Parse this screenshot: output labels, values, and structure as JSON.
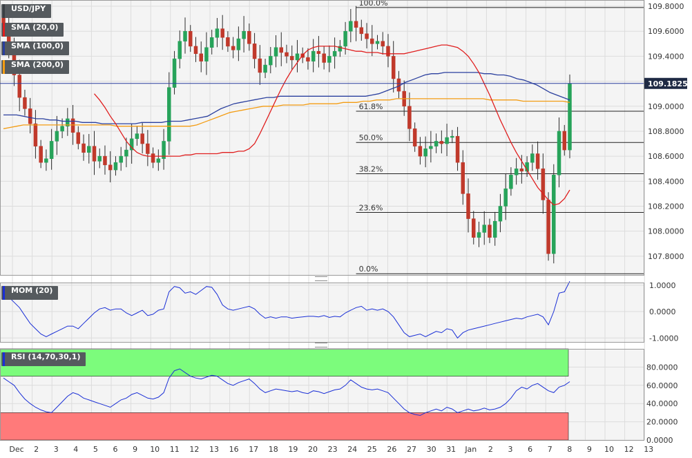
{
  "symbol": "USD/JPY",
  "indicators": {
    "sma20": "SMA (20,0)",
    "sma100": "SMA (100,0)",
    "sma200": "SMA (200,0)",
    "mom": "MOM (20)",
    "rsi": "RSI (14,70,30,1)"
  },
  "colors": {
    "sma20": "#e01e1e",
    "sma100": "#2a3f9e",
    "sma200": "#f39c12",
    "mom": "#1a2fd6",
    "rsi": "#1a2fd6",
    "candle_up": "#27a35a",
    "candle_down": "#c0392b",
    "overbought_zone": "#7cfc7c",
    "oversold_zone": "#ff7a7a"
  },
  "chart_data": [
    {
      "type": "candlestick",
      "panel": "price",
      "ylim": [
        107.65,
        109.85
      ],
      "y_ticks": [
        "109.8000",
        "109.6000",
        "109.4000",
        "109.2000",
        "109.0000",
        "108.8000",
        "108.6000",
        "108.4000",
        "108.2000",
        "108.0000",
        "107.8000"
      ],
      "last_price": "109.1825",
      "fibonacci": [
        {
          "label": "100.0%",
          "value": 109.79
        },
        {
          "label": "61.8%",
          "value": 108.96
        },
        {
          "label": "50.0%",
          "value": 108.71
        },
        {
          "label": "38.2%",
          "value": 108.46
        },
        {
          "label": "23.6%",
          "value": 108.15
        },
        {
          "label": "0.0%",
          "value": 107.66
        }
      ],
      "close_series": [
        109.66,
        109.45,
        109.25,
        109.07,
        108.98,
        108.86,
        108.68,
        108.55,
        108.58,
        108.72,
        108.8,
        108.84,
        108.9,
        108.79,
        108.7,
        108.63,
        108.68,
        108.56,
        108.6,
        108.53,
        108.49,
        108.55,
        108.6,
        108.65,
        108.74,
        108.78,
        108.7,
        108.62,
        108.55,
        108.58,
        108.72,
        109.15,
        109.38,
        109.52,
        109.6,
        109.48,
        109.42,
        109.36,
        109.47,
        109.55,
        109.62,
        109.55,
        109.48,
        109.45,
        109.54,
        109.6,
        109.5,
        109.38,
        109.27,
        109.33,
        109.4,
        109.47,
        109.43,
        109.4,
        109.37,
        109.42,
        109.39,
        109.36,
        109.44,
        109.42,
        109.35,
        109.4,
        109.44,
        109.48,
        109.6,
        109.68,
        109.63,
        109.58,
        109.54,
        109.5,
        109.52,
        109.48,
        109.4,
        109.22,
        109.12,
        109.0,
        108.82,
        108.68,
        108.6,
        108.66,
        108.68,
        108.72,
        108.7,
        108.75,
        108.76,
        108.55,
        108.3,
        108.1,
        107.95,
        107.99,
        108.05,
        107.95,
        108.08,
        108.2,
        108.34,
        108.45,
        108.5,
        108.48,
        108.55,
        108.62,
        108.5,
        108.25,
        107.82,
        108.45,
        108.8,
        108.65,
        109.18
      ],
      "sma20_series": [
        109.1,
        109.05,
        108.99,
        108.92,
        108.86,
        108.79,
        108.72,
        108.67,
        108.63,
        108.61,
        108.6,
        108.6,
        108.6,
        108.6,
        108.6,
        108.6,
        108.6,
        108.61,
        108.61,
        108.62,
        108.62,
        108.62,
        108.62,
        108.62,
        108.63,
        108.63,
        108.63,
        108.64,
        108.64,
        108.66,
        108.7,
        108.78,
        108.87,
        108.96,
        109.05,
        109.14,
        109.22,
        109.29,
        109.35,
        109.41,
        109.45,
        109.47,
        109.48,
        109.48,
        109.48,
        109.48,
        109.47,
        109.46,
        109.45,
        109.44,
        109.44,
        109.43,
        109.43,
        109.43,
        109.42,
        109.42,
        109.42,
        109.42,
        109.42,
        109.43,
        109.44,
        109.45,
        109.46,
        109.47,
        109.48,
        109.49,
        109.49,
        109.48,
        109.47,
        109.44,
        109.4,
        109.34,
        109.27,
        109.18,
        109.09,
        108.99,
        108.89,
        108.8,
        108.71,
        108.63,
        108.56,
        108.49,
        108.42,
        108.35,
        108.3,
        108.25,
        108.21,
        108.22,
        108.26,
        108.33
      ],
      "sma20_start_index": 17,
      "sma100_series": [
        108.93,
        108.93,
        108.93,
        108.92,
        108.91,
        108.9,
        108.9,
        108.89,
        108.89,
        108.88,
        108.88,
        108.88,
        108.87,
        108.87,
        108.87,
        108.86,
        108.86,
        108.86,
        108.86,
        108.86,
        108.86,
        108.87,
        108.87,
        108.87,
        108.87,
        108.88,
        108.88,
        108.88,
        108.89,
        108.9,
        108.91,
        108.92,
        108.95,
        108.98,
        109.0,
        109.02,
        109.03,
        109.04,
        109.05,
        109.06,
        109.07,
        109.07,
        109.08,
        109.08,
        109.08,
        109.08,
        109.08,
        109.08,
        109.08,
        109.08,
        109.08,
        109.08,
        109.08,
        109.08,
        109.08,
        109.08,
        109.09,
        109.1,
        109.12,
        109.14,
        109.16,
        109.19,
        109.21,
        109.23,
        109.25,
        109.26,
        109.26,
        109.27,
        109.27,
        109.27,
        109.27,
        109.27,
        109.27,
        109.26,
        109.26,
        109.25,
        109.25,
        109.24,
        109.22,
        109.21,
        109.19,
        109.17,
        109.14,
        109.11,
        109.09,
        109.07,
        109.05
      ],
      "sma200_series": [
        108.82,
        108.83,
        108.84,
        108.85,
        108.85,
        108.85,
        108.85,
        108.85,
        108.85,
        108.85,
        108.85,
        108.85,
        108.85,
        108.85,
        108.85,
        108.85,
        108.85,
        108.84,
        108.84,
        108.84,
        108.84,
        108.84,
        108.84,
        108.84,
        108.84,
        108.84,
        108.84,
        108.84,
        108.84,
        108.85,
        108.87,
        108.89,
        108.91,
        108.93,
        108.95,
        108.96,
        108.97,
        108.98,
        108.99,
        109.0,
        109.0,
        109.0,
        109.01,
        109.01,
        109.01,
        109.01,
        109.02,
        109.02,
        109.02,
        109.02,
        109.02,
        109.03,
        109.03,
        109.03,
        109.04,
        109.04,
        109.05,
        109.05,
        109.05,
        109.06,
        109.06,
        109.06,
        109.06,
        109.06,
        109.06,
        109.06,
        109.06,
        109.06,
        109.06,
        109.06,
        109.06,
        109.06,
        109.06,
        109.05,
        109.05,
        109.05,
        109.05,
        109.05,
        109.04,
        109.04,
        109.04,
        109.04,
        109.04,
        109.04,
        109.04,
        109.03
      ]
    },
    {
      "type": "line",
      "panel": "momentum",
      "ylim": [
        -1.15,
        1.1
      ],
      "y_ticks": [
        "1.0000",
        "0.0000",
        "-1.0000"
      ],
      "values": [
        0.75,
        0.55,
        0.35,
        0.15,
        -0.15,
        -0.45,
        -0.65,
        -0.85,
        -0.95,
        -0.85,
        -0.75,
        -0.65,
        -0.55,
        -0.55,
        -0.65,
        -0.45,
        -0.25,
        -0.05,
        0.1,
        0.15,
        0.05,
        0.1,
        0.1,
        -0.05,
        -0.15,
        -0.05,
        0.05,
        -0.15,
        -0.1,
        0.05,
        0.1,
        0.75,
        0.95,
        0.9,
        0.7,
        0.75,
        0.65,
        0.8,
        0.95,
        0.92,
        0.65,
        0.25,
        0.1,
        0.05,
        0.1,
        0.15,
        0.2,
        0.1,
        -0.1,
        -0.25,
        -0.2,
        -0.25,
        -0.2,
        -0.2,
        -0.25,
        -0.22,
        -0.2,
        -0.18,
        -0.18,
        -0.2,
        -0.15,
        -0.22,
        -0.18,
        -0.2,
        -0.05,
        0.05,
        0.15,
        0.2,
        0.05,
        0.1,
        0.05,
        0.1,
        0.0,
        -0.2,
        -0.5,
        -0.8,
        -0.95,
        -0.9,
        -0.85,
        -0.95,
        -0.85,
        -0.75,
        -0.8,
        -0.65,
        -0.7,
        -1.0,
        -0.8,
        -0.7,
        -0.65,
        -0.6,
        -0.55,
        -0.5,
        -0.45,
        -0.4,
        -0.35,
        -0.3,
        -0.25,
        -0.28,
        -0.2,
        -0.15,
        -0.1,
        -0.2,
        -0.5,
        0.0,
        0.7,
        0.75,
        1.15
      ]
    },
    {
      "type": "line",
      "panel": "rsi",
      "ylim": [
        0,
        100
      ],
      "y_ticks": [
        "80.0000",
        "60.0000",
        "40.0000",
        "20.0000",
        "0.0000"
      ],
      "overbought": 70,
      "oversold": 30,
      "values": [
        68,
        64,
        60,
        52,
        45,
        40,
        36,
        33,
        31,
        30,
        36,
        42,
        48,
        52,
        50,
        46,
        44,
        42,
        40,
        38,
        36,
        40,
        44,
        46,
        50,
        52,
        49,
        46,
        45,
        47,
        52,
        68,
        76,
        78,
        74,
        70,
        68,
        67,
        69,
        71,
        70,
        66,
        62,
        60,
        63,
        65,
        67,
        62,
        56,
        52,
        54,
        56,
        55,
        54,
        53,
        54,
        52,
        51,
        54,
        53,
        51,
        53,
        55,
        56,
        60,
        66,
        62,
        58,
        56,
        55,
        56,
        54,
        52,
        46,
        40,
        34,
        30,
        28,
        27,
        30,
        32,
        34,
        32,
        36,
        34,
        30,
        32,
        34,
        32,
        33,
        35,
        33,
        34,
        36,
        40,
        46,
        54,
        58,
        56,
        60,
        62,
        58,
        54,
        52,
        58,
        60,
        64
      ]
    }
  ],
  "x_axis": {
    "labels": [
      "Dec",
      "2",
      "3",
      "4",
      "5",
      "6",
      "9",
      "10",
      "11",
      "12",
      "13",
      "16",
      "17",
      "18",
      "19",
      "20",
      "23",
      "24",
      "25",
      "26",
      "27",
      "30",
      "31",
      "Jan",
      "2",
      "3",
      "6",
      "7",
      "8",
      "9",
      "10",
      "12",
      "13"
    ]
  }
}
